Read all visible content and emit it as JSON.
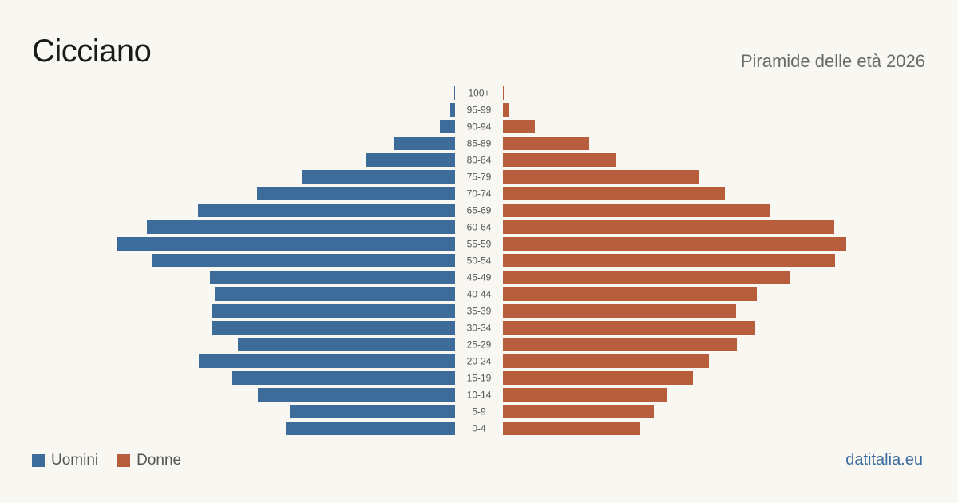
{
  "header": {
    "title": "Cicciano",
    "subtitle": "Piramide delle età 2026"
  },
  "legend": {
    "male_label": "Uomini",
    "female_label": "Donne"
  },
  "footer": {
    "source": "datitalia.eu"
  },
  "colors": {
    "male": "#3d6b9a",
    "female": "#b95e3d",
    "background": "#f9f7f2"
  },
  "chart_data": {
    "type": "bar",
    "orientation": "horizontal",
    "subtype": "population-pyramid",
    "categories": [
      "100+",
      "95-99",
      "90-94",
      "85-89",
      "80-84",
      "75-79",
      "70-74",
      "65-69",
      "60-64",
      "55-59",
      "50-54",
      "45-49",
      "40-44",
      "35-39",
      "30-34",
      "25-29",
      "20-24",
      "15-19",
      "10-14",
      "5-9",
      "0-4"
    ],
    "series": [
      {
        "name": "Uomini",
        "values": [
          1,
          6,
          19,
          76,
          111,
          192,
          248,
          322,
          386,
          424,
          379,
          307,
          301,
          305,
          304,
          272,
          321,
          280,
          247,
          207,
          212
        ]
      },
      {
        "name": "Donne",
        "values": [
          1,
          8,
          40,
          108,
          141,
          245,
          278,
          334,
          415,
          430,
          416,
          359,
          318,
          292,
          316,
          293,
          258,
          238,
          205,
          189,
          172
        ]
      }
    ],
    "xlim": [
      0,
      430
    ],
    "axis_labels_visible": false,
    "grid": false,
    "legend_position": "bottom-left"
  }
}
